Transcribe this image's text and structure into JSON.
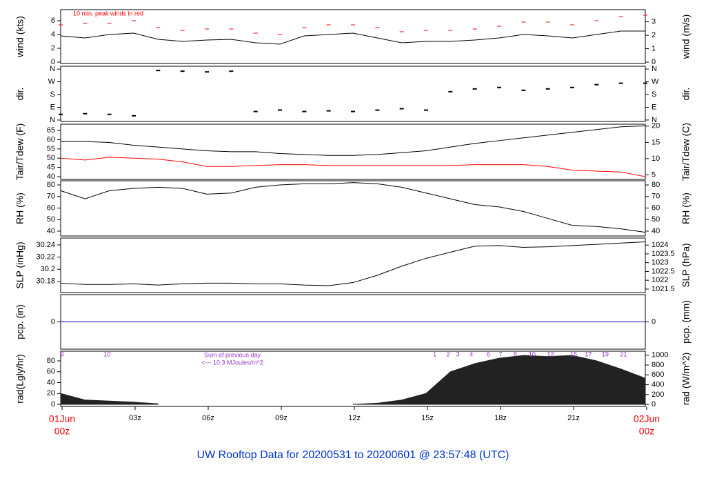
{
  "chart_data": [
    {
      "type": "line",
      "ylabel": "wind (kts)",
      "y2label": "wind (m/s)",
      "annotation": "10 min. peak winds in red",
      "xlim": [
        0,
        24
      ],
      "ylim": [
        -0.2,
        7.6
      ],
      "yticks": [
        0,
        2,
        4,
        6
      ],
      "y2lim": [
        -0.1,
        3.9
      ],
      "y2ticks": [
        0,
        1,
        2,
        3
      ],
      "x": [
        0,
        1,
        2,
        3,
        4,
        5,
        6,
        7,
        8,
        9,
        10,
        11,
        12,
        13,
        14,
        15,
        16,
        17,
        18,
        19,
        20,
        21,
        22,
        23,
        24
      ],
      "series": [
        {
          "name": "wind",
          "color": "#000000",
          "mark": "line",
          "values": [
            3.8,
            3.5,
            4.0,
            4.2,
            3.3,
            3.0,
            3.2,
            3.3,
            2.8,
            2.6,
            3.8,
            4.0,
            4.2,
            3.5,
            2.8,
            3.0,
            3.0,
            3.2,
            3.5,
            4.0,
            3.8,
            3.5,
            4.0,
            4.5,
            4.5
          ]
        },
        {
          "name": "peak",
          "color": "#ff0000",
          "mark": "dash",
          "values": [
            5.4,
            5.6,
            5.6,
            6.0,
            5.0,
            4.6,
            4.8,
            4.8,
            4.2,
            4.0,
            5.0,
            5.4,
            5.4,
            5.0,
            4.4,
            4.6,
            4.6,
            4.8,
            5.2,
            5.8,
            5.8,
            5.4,
            6.0,
            6.6,
            6.8
          ]
        }
      ]
    },
    {
      "type": "scatter",
      "ylabel": "dir.",
      "y2label": "dir.",
      "xlim": [
        0,
        24
      ],
      "ylim": [
        -10,
        380
      ],
      "yticks": [
        {
          "value": 0,
          "label": "N"
        },
        {
          "value": 90,
          "label": "E"
        },
        {
          "value": 180,
          "label": "S"
        },
        {
          "value": 270,
          "label": "W"
        },
        {
          "value": 360,
          "label": "N"
        }
      ],
      "y2lim": [
        -10,
        380
      ],
      "y2ticks": [
        {
          "value": 0,
          "label": "N"
        },
        {
          "value": 90,
          "label": "E"
        },
        {
          "value": 180,
          "label": "S"
        },
        {
          "value": 270,
          "label": "W"
        },
        {
          "value": 360,
          "label": "N"
        }
      ],
      "x": [
        0,
        1,
        2,
        3,
        4,
        5,
        6,
        7,
        8,
        9,
        10,
        11,
        12,
        13,
        14,
        15,
        16,
        17,
        18,
        19,
        20,
        21,
        22,
        23,
        24
      ],
      "series": [
        {
          "name": "dir",
          "color": "#000000",
          "values": [
            40,
            45,
            40,
            30,
            350,
            345,
            340,
            345,
            60,
            70,
            60,
            65,
            60,
            70,
            80,
            70,
            200,
            220,
            230,
            210,
            220,
            230,
            250,
            260,
            260
          ]
        }
      ]
    },
    {
      "type": "line",
      "ylabel": "Tair/Tdew (F)",
      "y2label": "Tair/Tdew (C)",
      "xlim": [
        0,
        24
      ],
      "ylim": [
        38.5,
        68.4
      ],
      "yticks": [
        40,
        45,
        50,
        55,
        60,
        65
      ],
      "y2lim": [
        3.6,
        20.6
      ],
      "y2ticks": [
        5,
        10,
        15,
        20
      ],
      "x": [
        0,
        1,
        2,
        3,
        4,
        5,
        6,
        7,
        8,
        9,
        10,
        11,
        12,
        13,
        14,
        15,
        16,
        17,
        18,
        19,
        20,
        21,
        22,
        23,
        24
      ],
      "series": [
        {
          "name": "Tair",
          "color": "#000000",
          "mark": "line",
          "values": [
            59,
            59,
            58.5,
            57,
            56,
            55,
            54,
            53.5,
            53.5,
            52.5,
            52,
            51.5,
            51.5,
            52,
            53,
            54,
            56,
            58,
            59.5,
            61,
            62.5,
            64,
            65.5,
            67,
            67.5
          ]
        },
        {
          "name": "Tdew",
          "color": "#ff0000",
          "mark": "line",
          "values": [
            50,
            49,
            50.5,
            50,
            49.5,
            48,
            45.5,
            45.5,
            46,
            46.5,
            46.5,
            46,
            46,
            46,
            46,
            46,
            46,
            46.5,
            46.5,
            46.5,
            45.5,
            43.5,
            43,
            42.5,
            40
          ]
        }
      ]
    },
    {
      "type": "line",
      "ylabel": "RH (%)",
      "y2label": "RH (%)",
      "xlim": [
        0,
        24
      ],
      "ylim": [
        35.8,
        83.6
      ],
      "yticks": [
        40,
        50,
        60,
        70,
        80
      ],
      "y2lim": [
        35.8,
        83.6
      ],
      "y2ticks": [
        40,
        50,
        60,
        70,
        80
      ],
      "x": [
        0,
        1,
        2,
        3,
        4,
        5,
        6,
        7,
        8,
        9,
        10,
        11,
        12,
        13,
        14,
        15,
        16,
        17,
        18,
        19,
        20,
        21,
        22,
        23,
        24
      ],
      "series": [
        {
          "name": "RH",
          "color": "#000000",
          "mark": "line",
          "values": [
            75,
            68,
            75,
            77,
            78,
            77,
            72,
            73,
            78,
            80,
            81,
            81,
            82,
            81,
            78,
            73,
            68,
            63,
            61,
            57,
            51,
            45,
            44,
            42,
            39
          ]
        }
      ]
    },
    {
      "type": "line",
      "ylabel": "SLP (inHg)",
      "y2label": "SLP (hPa)",
      "xlim": [
        0,
        24
      ],
      "ylim": [
        30.1616,
        30.2513
      ],
      "yticks": [
        30.18,
        30.2,
        30.22,
        30.24
      ],
      "y2lim": [
        1021.3,
        1024.4
      ],
      "y2ticks": [
        1021.5,
        1022,
        1022.5,
        1023,
        1023.5,
        1024
      ],
      "x": [
        0,
        1,
        2,
        3,
        4,
        5,
        6,
        7,
        8,
        9,
        10,
        11,
        12,
        13,
        14,
        15,
        16,
        17,
        18,
        19,
        20,
        21,
        22,
        23,
        24
      ],
      "series": [
        {
          "name": "SLP",
          "color": "#000000",
          "mark": "line",
          "values": [
            30.177,
            30.175,
            30.175,
            30.176,
            30.174,
            30.176,
            30.177,
            30.177,
            30.176,
            30.176,
            30.174,
            30.173,
            30.178,
            30.19,
            30.205,
            30.218,
            30.228,
            30.238,
            30.239,
            30.236,
            30.237,
            30.239,
            30.241,
            30.243,
            30.245
          ]
        }
      ]
    },
    {
      "type": "line",
      "ylabel": "pcp. (in)",
      "y2label": "pcp. (mm)",
      "xlim": [
        0,
        24
      ],
      "ylim": [
        -1,
        1
      ],
      "yticks": [
        0
      ],
      "y2lim": [
        -1,
        1
      ],
      "y2ticks": [
        0
      ],
      "x": [
        0,
        1,
        2,
        3,
        4,
        5,
        6,
        7,
        8,
        9,
        10,
        11,
        12,
        13,
        14,
        15,
        16,
        17,
        18,
        19,
        20,
        21,
        22,
        23,
        24
      ],
      "series": [
        {
          "name": "pcp",
          "color": "#0000cc",
          "mark": "line",
          "values": [
            0,
            0,
            0,
            0,
            0,
            0,
            0,
            0,
            0,
            0,
            0,
            0,
            0,
            0,
            0,
            0,
            0,
            0,
            0,
            0,
            0,
            0,
            0,
            0,
            0
          ]
        }
      ]
    },
    {
      "type": "area",
      "ylabel": "rad(Lgly/hr)",
      "y2label": "rad (W/m^2)",
      "xlim": [
        0,
        24
      ],
      "ylim": [
        -3.8,
        97.8
      ],
      "yticks": [
        0,
        20,
        40,
        60,
        80
      ],
      "y2lim": [
        -40,
        1080
      ],
      "y2ticks": [
        0,
        200,
        400,
        600,
        800,
        1000
      ],
      "annotation": "Sum of previous day",
      "annotation2": "<--- 10.3 MJoules/m^2",
      "hour_labels": [
        {
          "value": 0,
          "label": "9"
        },
        {
          "value": 1.85,
          "label": "10"
        },
        {
          "value": 15.3,
          "label": "1"
        },
        {
          "value": 15.85,
          "label": "2"
        },
        {
          "value": 16.25,
          "label": "3"
        },
        {
          "value": 16.8,
          "label": "4"
        },
        {
          "value": 17.5,
          "label": "6"
        },
        {
          "value": 18.0,
          "label": "7"
        },
        {
          "value": 18.6,
          "label": "8"
        },
        {
          "value": 19.3,
          "label": "10"
        },
        {
          "value": 20.05,
          "label": "12"
        },
        {
          "value": 21.0,
          "label": "15"
        },
        {
          "value": 21.6,
          "label": "17"
        },
        {
          "value": 22.3,
          "label": "19"
        },
        {
          "value": 23.05,
          "label": "21"
        }
      ],
      "xticks": [
        {
          "value": 0,
          "label": "00z"
        },
        {
          "value": 3,
          "label": "03z"
        },
        {
          "value": 6,
          "label": "06z"
        },
        {
          "value": 9,
          "label": "09z"
        },
        {
          "value": 12,
          "label": "12z"
        },
        {
          "value": 15,
          "label": "15z"
        },
        {
          "value": 18,
          "label": "18z"
        },
        {
          "value": 21,
          "label": "21z"
        },
        {
          "value": 24,
          "label": "00z"
        }
      ],
      "date_labels": [
        {
          "value": 0,
          "label": "01Jun"
        },
        {
          "value": 24,
          "label": "02Jun"
        }
      ],
      "x": [
        0,
        1,
        2,
        3,
        4,
        5,
        6,
        7,
        8,
        9,
        10,
        11,
        12,
        13,
        14,
        15,
        16,
        17,
        18,
        19,
        20,
        21,
        22,
        23,
        24
      ],
      "series": [
        {
          "name": "rad",
          "color": "#222222",
          "values": [
            20,
            8,
            6,
            4,
            1,
            null,
            null,
            null,
            null,
            null,
            null,
            null,
            0,
            2,
            8,
            20,
            60,
            75,
            85,
            90,
            88,
            90,
            80,
            65,
            48
          ]
        }
      ]
    },
    {
      "type": "title",
      "title": "UW Rooftop Data for 20200531  to  20200601 @ 23:57:48  (UTC)"
    }
  ]
}
